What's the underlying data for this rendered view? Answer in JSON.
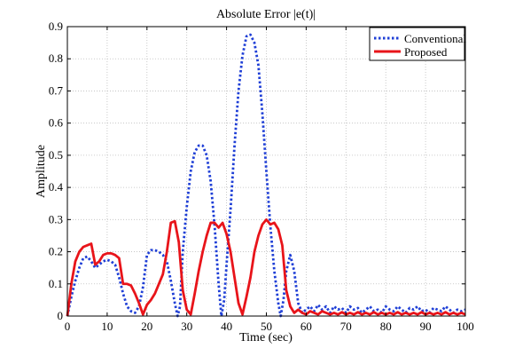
{
  "chart_data": {
    "type": "line",
    "title": "Absolute Error |e(t)|",
    "xlabel": "Time (sec)",
    "ylabel": "Amplitude",
    "xlim": [
      0,
      100
    ],
    "ylim": [
      0,
      0.9
    ],
    "x_ticks": [
      0,
      10,
      20,
      30,
      40,
      50,
      60,
      70,
      80,
      90,
      100
    ],
    "y_ticks": [
      0,
      0.1,
      0.2,
      0.3,
      0.4,
      0.5,
      0.6,
      0.7,
      0.8,
      0.9
    ],
    "x_tick_labels": [
      "0",
      "10",
      "20",
      "30",
      "40",
      "50",
      "60",
      "70",
      "80",
      "90",
      "100"
    ],
    "y_tick_labels": [
      "0",
      "0.1",
      "0.2",
      "0.3",
      "0.4",
      "0.5",
      "0.6",
      "0.7",
      "0.8",
      "0.9"
    ],
    "grid": true,
    "legend_position": "top-right",
    "series": [
      {
        "name": "Conventional",
        "color": "#1f3fd6",
        "style": "dotted",
        "points": [
          [
            0,
            0
          ],
          [
            1,
            0.06
          ],
          [
            2,
            0.11
          ],
          [
            3,
            0.15
          ],
          [
            4,
            0.18
          ],
          [
            5,
            0.185
          ],
          [
            6,
            0.17
          ],
          [
            7,
            0.15
          ],
          [
            8,
            0.16
          ],
          [
            9,
            0.17
          ],
          [
            10,
            0.175
          ],
          [
            11,
            0.17
          ],
          [
            12,
            0.16
          ],
          [
            13,
            0.12
          ],
          [
            14,
            0.07
          ],
          [
            15,
            0.03
          ],
          [
            16,
            0.015
          ],
          [
            17,
            0.01
          ],
          [
            18,
            0.03
          ],
          [
            19,
            0.09
          ],
          [
            20,
            0.19
          ],
          [
            21,
            0.205
          ],
          [
            22,
            0.205
          ],
          [
            23,
            0.2
          ],
          [
            24,
            0.19
          ],
          [
            25,
            0.17
          ],
          [
            26,
            0.11
          ],
          [
            27,
            0.04
          ],
          [
            27.7,
            0
          ],
          [
            28.3,
            0.03
          ],
          [
            29,
            0.2
          ],
          [
            30,
            0.34
          ],
          [
            31,
            0.45
          ],
          [
            32,
            0.51
          ],
          [
            33,
            0.53
          ],
          [
            34,
            0.53
          ],
          [
            35,
            0.5
          ],
          [
            36,
            0.42
          ],
          [
            37,
            0.28
          ],
          [
            38,
            0.1
          ],
          [
            38.7,
            0
          ],
          [
            39.4,
            0.05
          ],
          [
            40,
            0.16
          ],
          [
            41,
            0.33
          ],
          [
            42,
            0.53
          ],
          [
            43,
            0.7
          ],
          [
            44,
            0.81
          ],
          [
            45,
            0.87
          ],
          [
            46,
            0.875
          ],
          [
            47,
            0.85
          ],
          [
            48,
            0.78
          ],
          [
            49,
            0.63
          ],
          [
            50,
            0.45
          ],
          [
            51,
            0.28
          ],
          [
            52,
            0.14
          ],
          [
            53,
            0.04
          ],
          [
            53.6,
            0
          ],
          [
            54.3,
            0.05
          ],
          [
            55,
            0.14
          ],
          [
            56,
            0.19
          ],
          [
            57,
            0.14
          ],
          [
            58,
            0.04
          ],
          [
            59,
            0.01
          ],
          [
            60,
            0.02
          ],
          [
            61,
            0.03
          ],
          [
            62,
            0.015
          ],
          [
            63,
            0.035
          ],
          [
            64,
            0.02
          ],
          [
            65,
            0.03
          ],
          [
            66,
            0.01
          ],
          [
            67,
            0.03
          ],
          [
            68,
            0.02
          ],
          [
            69,
            0.025
          ],
          [
            70,
            0.01
          ],
          [
            71,
            0.03
          ],
          [
            72,
            0.02
          ],
          [
            73,
            0.025
          ],
          [
            74,
            0.01
          ],
          [
            75,
            0.02
          ],
          [
            76,
            0.03
          ],
          [
            77,
            0.015
          ],
          [
            78,
            0.02
          ],
          [
            79,
            0.01
          ],
          [
            80,
            0.03
          ],
          [
            81,
            0.02
          ],
          [
            82,
            0.015
          ],
          [
            83,
            0.03
          ],
          [
            84,
            0.02
          ],
          [
            85,
            0.01
          ],
          [
            86,
            0.025
          ],
          [
            87,
            0.02
          ],
          [
            88,
            0.03
          ],
          [
            89,
            0.015
          ],
          [
            90,
            0.02
          ],
          [
            91,
            0.01
          ],
          [
            92,
            0.025
          ],
          [
            93,
            0.02
          ],
          [
            94,
            0.015
          ],
          [
            95,
            0.03
          ],
          [
            96,
            0.02
          ],
          [
            97,
            0.01
          ],
          [
            98,
            0.02
          ],
          [
            99,
            0.015
          ],
          [
            100,
            0.02
          ]
        ]
      },
      {
        "name": "Proposed",
        "color": "#e8141a",
        "style": "solid",
        "points": [
          [
            0,
            0
          ],
          [
            1,
            0.1
          ],
          [
            2,
            0.17
          ],
          [
            3,
            0.2
          ],
          [
            4,
            0.215
          ],
          [
            5,
            0.22
          ],
          [
            6,
            0.225
          ],
          [
            7,
            0.16
          ],
          [
            8,
            0.17
          ],
          [
            9,
            0.19
          ],
          [
            10,
            0.195
          ],
          [
            11,
            0.195
          ],
          [
            12,
            0.19
          ],
          [
            13,
            0.18
          ],
          [
            14,
            0.1
          ],
          [
            15,
            0.1
          ],
          [
            16,
            0.095
          ],
          [
            17,
            0.07
          ],
          [
            18,
            0.04
          ],
          [
            19,
            0.005
          ],
          [
            20,
            0.035
          ],
          [
            21,
            0.05
          ],
          [
            22,
            0.07
          ],
          [
            23,
            0.1
          ],
          [
            24,
            0.13
          ],
          [
            25,
            0.2
          ],
          [
            26,
            0.29
          ],
          [
            27,
            0.295
          ],
          [
            28,
            0.23
          ],
          [
            29,
            0.08
          ],
          [
            30,
            0.02
          ],
          [
            31,
            0.005
          ],
          [
            32,
            0.07
          ],
          [
            33,
            0.14
          ],
          [
            34,
            0.2
          ],
          [
            35,
            0.25
          ],
          [
            36,
            0.29
          ],
          [
            37,
            0.29
          ],
          [
            38,
            0.275
          ],
          [
            39,
            0.29
          ],
          [
            40,
            0.255
          ],
          [
            41,
            0.2
          ],
          [
            42,
            0.12
          ],
          [
            43,
            0.04
          ],
          [
            44,
            0.005
          ],
          [
            45,
            0.06
          ],
          [
            46,
            0.12
          ],
          [
            47,
            0.2
          ],
          [
            48,
            0.25
          ],
          [
            49,
            0.285
          ],
          [
            50,
            0.3
          ],
          [
            51,
            0.285
          ],
          [
            52,
            0.29
          ],
          [
            53,
            0.27
          ],
          [
            54,
            0.22
          ],
          [
            55,
            0.08
          ],
          [
            56,
            0.03
          ],
          [
            57,
            0.01
          ],
          [
            58,
            0.02
          ],
          [
            59,
            0.01
          ],
          [
            60,
            0.005
          ],
          [
            61,
            0.015
          ],
          [
            62,
            0.01
          ],
          [
            63,
            0.005
          ],
          [
            64,
            0.015
          ],
          [
            65,
            0.01
          ],
          [
            66,
            0.005
          ],
          [
            67,
            0.01
          ],
          [
            68,
            0.005
          ],
          [
            69,
            0.012
          ],
          [
            70,
            0.005
          ],
          [
            71,
            0.01
          ],
          [
            72,
            0.005
          ],
          [
            73,
            0.012
          ],
          [
            74,
            0.005
          ],
          [
            75,
            0.01
          ],
          [
            76,
            0.005
          ],
          [
            77,
            0.012
          ],
          [
            78,
            0.005
          ],
          [
            79,
            0.01
          ],
          [
            80,
            0.005
          ],
          [
            81,
            0.01
          ],
          [
            82,
            0.005
          ],
          [
            83,
            0.012
          ],
          [
            84,
            0.005
          ],
          [
            85,
            0.01
          ],
          [
            86,
            0.005
          ],
          [
            87,
            0.01
          ],
          [
            88,
            0.005
          ],
          [
            89,
            0.012
          ],
          [
            90,
            0.005
          ],
          [
            91,
            0.01
          ],
          [
            92,
            0.005
          ],
          [
            93,
            0.01
          ],
          [
            94,
            0.005
          ],
          [
            95,
            0.012
          ],
          [
            96,
            0.005
          ],
          [
            97,
            0.01
          ],
          [
            98,
            0.005
          ],
          [
            99,
            0.01
          ],
          [
            100,
            0.005
          ]
        ]
      }
    ]
  }
}
